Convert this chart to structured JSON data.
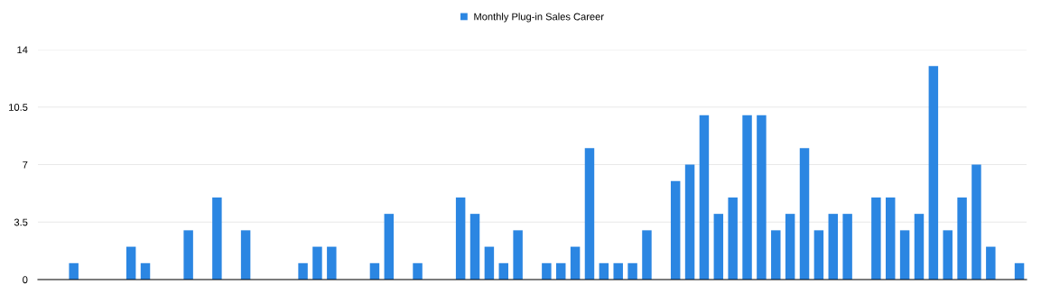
{
  "chart_data": {
    "type": "bar",
    "categories": [
      null,
      null,
      null,
      null,
      null,
      null,
      null,
      null,
      null,
      null,
      null,
      null,
      null,
      null,
      null,
      null,
      null,
      null,
      null,
      null,
      null,
      null,
      null,
      null,
      null,
      null,
      null,
      null,
      null,
      null,
      null,
      null,
      null,
      null,
      null,
      null,
      null,
      null,
      null,
      null,
      null,
      null,
      null,
      null,
      null,
      null,
      null,
      null,
      null,
      null,
      null,
      null,
      null,
      null,
      null,
      null,
      null,
      null,
      null,
      null,
      null,
      null,
      null,
      null,
      null,
      null,
      null,
      null,
      null
    ],
    "series": [
      {
        "name": "Monthly Plug-in Sales Career",
        "color": "#2b86e2",
        "values": [
          0,
          0,
          1,
          0,
          0,
          0,
          2,
          1,
          0,
          0,
          3,
          0,
          5,
          0,
          3,
          0,
          0,
          0,
          1,
          2,
          2,
          0,
          0,
          1,
          4,
          0,
          1,
          0,
          0,
          5,
          4,
          2,
          1,
          3,
          0,
          1,
          1,
          2,
          8,
          1,
          1,
          1,
          3,
          0,
          6,
          7,
          10,
          4,
          5,
          10,
          10,
          3,
          4,
          8,
          3,
          4,
          4,
          0,
          5,
          5,
          3,
          4,
          13,
          3,
          5,
          7,
          2,
          0,
          1
        ]
      }
    ],
    "ylim": [
      0,
      14
    ],
    "yticks": [
      0,
      3.5,
      7,
      10.5,
      14
    ],
    "grid": "y",
    "legend": "top"
  }
}
